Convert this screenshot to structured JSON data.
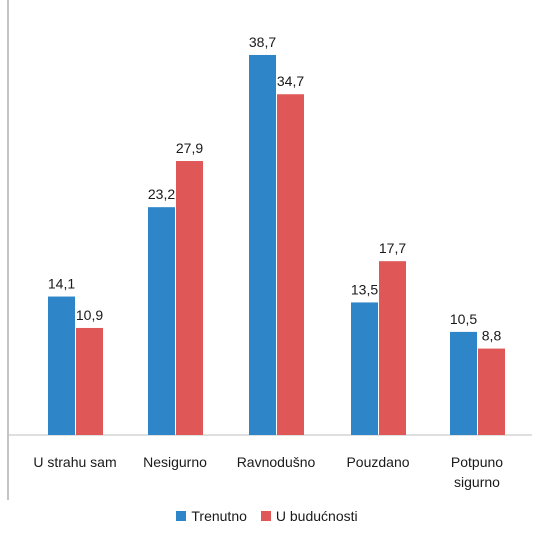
{
  "chart_data": {
    "type": "bar",
    "categories": [
      "U strahu sam",
      "Nesigurno",
      "Ravnodušno",
      "Pouzdano",
      "Potpuno sigurno"
    ],
    "category_lines": [
      [
        "U strahu sam"
      ],
      [
        "Nesigurno"
      ],
      [
        "Ravnodušno"
      ],
      [
        "Pouzdano"
      ],
      [
        "Potpuno",
        "sigurno"
      ]
    ],
    "series": [
      {
        "name": "Trenutno",
        "values": [
          14.1,
          23.2,
          38.7,
          13.5,
          10.5
        ],
        "labels": [
          "14,1",
          "23,2",
          "38,7",
          "13,5",
          "10,5"
        ],
        "color": "#2e86c8"
      },
      {
        "name": "U budućnosti",
        "values": [
          10.9,
          27.9,
          34.7,
          17.7,
          8.8
        ],
        "labels": [
          "10,9",
          "27,9",
          "34,7",
          "17,7",
          "8,8"
        ],
        "color": "#e05757"
      }
    ],
    "ylim": [
      0,
      40
    ],
    "grid": false,
    "legend_position": "bottom",
    "title": "",
    "xlabel": "",
    "ylabel": ""
  }
}
